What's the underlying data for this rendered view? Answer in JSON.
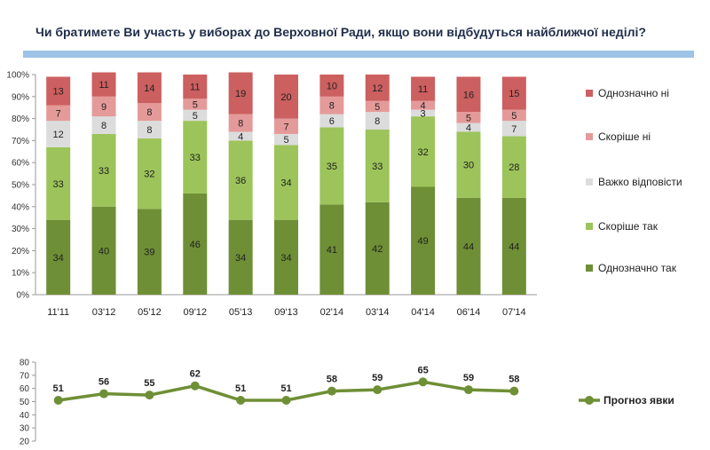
{
  "title": "Чи братимете Ви участь у виборах до Верховної Ради, якщо вони відбудуться найближчої неділі?",
  "chart_data": [
    {
      "type": "bar",
      "stacked": true,
      "categories": [
        "11'11",
        "03'12",
        "05'12",
        "09'12",
        "05'13",
        "09'13",
        "02'14",
        "03'14",
        "04'14",
        "06'14",
        "07'14"
      ],
      "series": [
        {
          "name": "Однозначно так",
          "color": "#6e8f35",
          "values": [
            34,
            40,
            39,
            46,
            34,
            34,
            41,
            42,
            49,
            44,
            44
          ]
        },
        {
          "name": "Скоріше так",
          "color": "#9cc45a",
          "values": [
            33,
            33,
            32,
            33,
            36,
            34,
            35,
            33,
            32,
            30,
            28
          ]
        },
        {
          "name": "Важко відповісти",
          "color": "#dcdcdc",
          "values": [
            12,
            8,
            8,
            5,
            4,
            5,
            6,
            8,
            3,
            4,
            7
          ]
        },
        {
          "name": "Скоріше ні",
          "color": "#e59a9a",
          "values": [
            7,
            9,
            8,
            5,
            8,
            7,
            8,
            5,
            4,
            5,
            5
          ]
        },
        {
          "name": "Однозначно ні",
          "color": "#cc5f5f",
          "values": [
            13,
            11,
            14,
            11,
            19,
            20,
            10,
            12,
            11,
            16,
            15
          ]
        }
      ],
      "yticks": [
        "0%",
        "10%",
        "20%",
        "30%",
        "40%",
        "50%",
        "60%",
        "70%",
        "80%",
        "90%",
        "100%"
      ],
      "ylim": [
        0,
        100
      ],
      "legend": "right"
    },
    {
      "type": "line",
      "categories": [
        "11'11",
        "03'12",
        "05'12",
        "09'12",
        "05'13",
        "09'13",
        "02'14",
        "03'14",
        "04'14",
        "06'14",
        "07'14"
      ],
      "series": [
        {
          "name": "Прогноз явки",
          "color": "#6e8f35",
          "values": [
            51,
            56,
            55,
            62,
            51,
            51,
            58,
            59,
            65,
            59,
            58
          ]
        }
      ],
      "yticks": [
        "20",
        "30",
        "40",
        "50",
        "60",
        "70",
        "80"
      ],
      "ylim": [
        20,
        80
      ],
      "legend": "right"
    }
  ]
}
